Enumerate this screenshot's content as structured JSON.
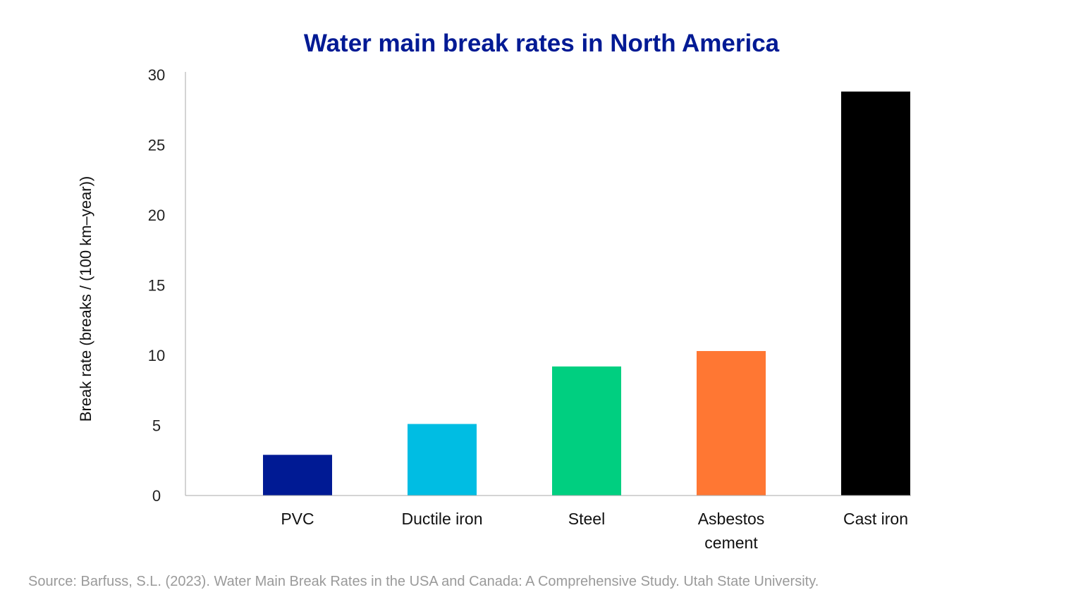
{
  "chart_data": {
    "type": "bar",
    "title": "Water main break rates in North America",
    "xlabel": "",
    "ylabel": "Break rate (breaks / (100 km–year))",
    "categories": [
      "PVC",
      "Ductile iron",
      "Steel",
      "Asbestos cement",
      "Cast iron"
    ],
    "category_lines": [
      [
        "PVC"
      ],
      [
        "Ductile iron"
      ],
      [
        "Steel"
      ],
      [
        "Asbestos",
        "cement"
      ],
      [
        "Cast iron"
      ]
    ],
    "values": [
      2.9,
      5.1,
      9.2,
      10.3,
      28.8
    ],
    "colors": [
      "#001a94",
      "#00bde3",
      "#00cf80",
      "#ff7733",
      "#000000"
    ],
    "ylim": [
      0,
      30
    ],
    "yticks": [
      0,
      5,
      10,
      15,
      20,
      25,
      30
    ],
    "grid": false,
    "legend": "none"
  },
  "source": "Source: Barfuss, S.L. (2023). Water Main Break Rates in the USA and Canada: A Comprehensive Study. Utah State University."
}
